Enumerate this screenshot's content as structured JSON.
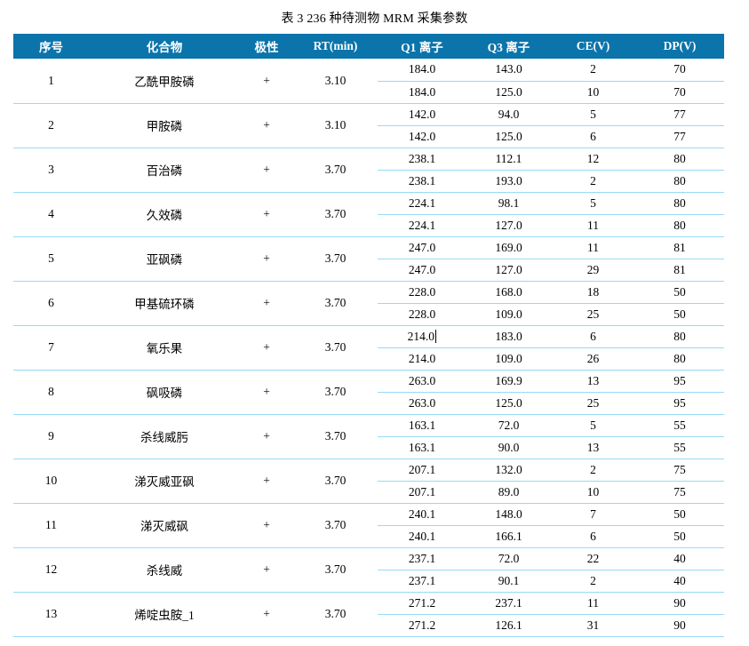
{
  "title": "表 3 236 种待测物 MRM 采集参数",
  "colors": {
    "header_bg": "#0b74ab",
    "header_text": "#ffffff",
    "row_line": "#97daf6"
  },
  "caret": {
    "group_index": 6,
    "transition_index": 0,
    "column_index": 0
  },
  "table": {
    "headers": [
      "序号",
      "化合物",
      "极性",
      "RT(min)",
      "Q1 离子",
      "Q3 离子",
      "CE(V)",
      "DP(V)"
    ],
    "rows": [
      {
        "no": "1",
        "compound": "乙酰甲胺磷",
        "polarity": "+",
        "rt": "3.10",
        "transitions": [
          [
            "184.0",
            "143.0",
            "2",
            "70"
          ],
          [
            "184.0",
            "125.0",
            "10",
            "70"
          ]
        ]
      },
      {
        "no": "2",
        "compound": "甲胺磷",
        "polarity": "+",
        "rt": "3.10",
        "transitions": [
          [
            "142.0",
            "94.0",
            "5",
            "77"
          ],
          [
            "142.0",
            "125.0",
            "6",
            "77"
          ]
        ]
      },
      {
        "no": "3",
        "compound": "百治磷",
        "polarity": "+",
        "rt": "3.70",
        "transitions": [
          [
            "238.1",
            "112.1",
            "12",
            "80"
          ],
          [
            "238.1",
            "193.0",
            "2",
            "80"
          ]
        ]
      },
      {
        "no": "4",
        "compound": "久效磷",
        "polarity": "+",
        "rt": "3.70",
        "transitions": [
          [
            "224.1",
            "98.1",
            "5",
            "80"
          ],
          [
            "224.1",
            "127.0",
            "11",
            "80"
          ]
        ]
      },
      {
        "no": "5",
        "compound": "亚砜磷",
        "polarity": "+",
        "rt": "3.70",
        "transitions": [
          [
            "247.0",
            "169.0",
            "11",
            "81"
          ],
          [
            "247.0",
            "127.0",
            "29",
            "81"
          ]
        ]
      },
      {
        "no": "6",
        "compound": "甲基硫环磷",
        "polarity": "+",
        "rt": "3.70",
        "transitions": [
          [
            "228.0",
            "168.0",
            "18",
            "50"
          ],
          [
            "228.0",
            "109.0",
            "25",
            "50"
          ]
        ]
      },
      {
        "no": "7",
        "compound": "氧乐果",
        "polarity": "+",
        "rt": "3.70",
        "transitions": [
          [
            "214.0",
            "183.0",
            "6",
            "80"
          ],
          [
            "214.0",
            "109.0",
            "26",
            "80"
          ]
        ]
      },
      {
        "no": "8",
        "compound": "砜吸磷",
        "polarity": "+",
        "rt": "3.70",
        "transitions": [
          [
            "263.0",
            "169.9",
            "13",
            "95"
          ],
          [
            "263.0",
            "125.0",
            "25",
            "95"
          ]
        ]
      },
      {
        "no": "9",
        "compound": "杀线威肟",
        "polarity": "+",
        "rt": "3.70",
        "transitions": [
          [
            "163.1",
            "72.0",
            "5",
            "55"
          ],
          [
            "163.1",
            "90.0",
            "13",
            "55"
          ]
        ]
      },
      {
        "no": "10",
        "compound": "涕灭威亚砜",
        "polarity": "+",
        "rt": "3.70",
        "transitions": [
          [
            "207.1",
            "132.0",
            "2",
            "75"
          ],
          [
            "207.1",
            "89.0",
            "10",
            "75"
          ]
        ]
      },
      {
        "no": "11",
        "compound": "涕灭威砜",
        "polarity": "+",
        "rt": "3.70",
        "transitions": [
          [
            "240.1",
            "148.0",
            "7",
            "50"
          ],
          [
            "240.1",
            "166.1",
            "6",
            "50"
          ]
        ]
      },
      {
        "no": "12",
        "compound": "杀线威",
        "polarity": "+",
        "rt": "3.70",
        "transitions": [
          [
            "237.1",
            "72.0",
            "22",
            "40"
          ],
          [
            "237.1",
            "90.1",
            "2",
            "40"
          ]
        ]
      },
      {
        "no": "13",
        "compound": "烯啶虫胺_1",
        "polarity": "+",
        "rt": "3.70",
        "transitions": [
          [
            "271.2",
            "237.1",
            "11",
            "90"
          ],
          [
            "271.2",
            "126.1",
            "31",
            "90"
          ]
        ]
      }
    ]
  }
}
